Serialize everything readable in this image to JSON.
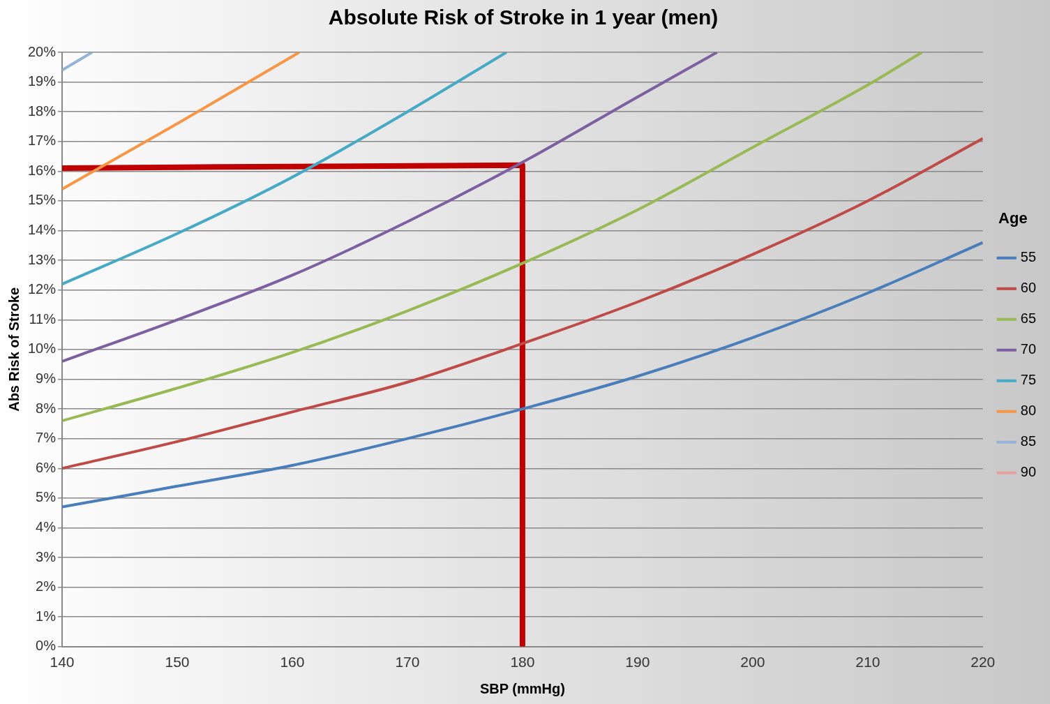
{
  "chart_data": {
    "type": "line",
    "title": "Absolute Risk of Stroke in 1 year (men)",
    "xlabel": "SBP (mmHg)",
    "ylabel": "Abs Risk of Stroke",
    "legend_title": "Age",
    "legend": "right",
    "grid": "y",
    "marker": "none",
    "line_style": "solid",
    "xlim": [
      140,
      220
    ],
    "xticks": [
      140,
      150,
      160,
      170,
      180,
      190,
      200,
      210,
      220
    ],
    "ylim": [
      0,
      20
    ],
    "yticks": [
      {
        "value": 0,
        "label": "0%"
      },
      {
        "value": 1,
        "label": "1%"
      },
      {
        "value": 2,
        "label": "2%"
      },
      {
        "value": 3,
        "label": "3%"
      },
      {
        "value": 4,
        "label": "4%"
      },
      {
        "value": 5,
        "label": "5%"
      },
      {
        "value": 6,
        "label": "6%"
      },
      {
        "value": 7,
        "label": "7%"
      },
      {
        "value": 8,
        "label": "8%"
      },
      {
        "value": 9,
        "label": "9%"
      },
      {
        "value": 10,
        "label": "10%"
      },
      {
        "value": 11,
        "label": "11%"
      },
      {
        "value": 12,
        "label": "12%"
      },
      {
        "value": 13,
        "label": "13%"
      },
      {
        "value": 14,
        "label": "14%"
      },
      {
        "value": 15,
        "label": "15%"
      },
      {
        "value": 16,
        "label": "16%"
      },
      {
        "value": 17,
        "label": "17%"
      },
      {
        "value": 18,
        "label": "18%"
      },
      {
        "value": 19,
        "label": "19%"
      },
      {
        "value": 20,
        "label": "20%"
      }
    ],
    "series": [
      {
        "name": "55",
        "color": "#4a7ebb",
        "x": [
          140,
          150,
          160,
          170,
          180,
          190,
          200,
          210,
          220
        ],
        "values": [
          4.7,
          5.4,
          6.1,
          7.0,
          8.0,
          9.1,
          10.4,
          11.9,
          13.6
        ]
      },
      {
        "name": "60",
        "color": "#be4b48",
        "x": [
          140,
          150,
          160,
          170,
          180,
          190,
          200,
          210,
          220
        ],
        "values": [
          6.0,
          6.9,
          7.9,
          8.9,
          10.2,
          11.6,
          13.2,
          15.0,
          17.1
        ]
      },
      {
        "name": "65",
        "color": "#98b954",
        "x": [
          140,
          150,
          160,
          170,
          180,
          190,
          200,
          210,
          214.7
        ],
        "values": [
          7.6,
          8.7,
          9.9,
          11.3,
          12.9,
          14.7,
          16.8,
          18.9,
          20
        ]
      },
      {
        "name": "70",
        "color": "#7d60a0",
        "x": [
          140,
          150,
          160,
          170,
          180,
          190,
          196.9
        ],
        "values": [
          9.6,
          11.0,
          12.5,
          14.3,
          16.3,
          18.5,
          20
        ]
      },
      {
        "name": "75",
        "color": "#46aac5",
        "x": [
          140,
          150,
          160,
          170,
          178.6
        ],
        "values": [
          12.2,
          13.9,
          15.8,
          18.0,
          20
        ]
      },
      {
        "name": "80",
        "color": "#f79646",
        "x": [
          140,
          150,
          160.6
        ],
        "values": [
          15.4,
          17.6,
          20
        ]
      },
      {
        "name": "85",
        "color": "#95b3d7",
        "x": [
          140,
          142.6
        ],
        "values": [
          19.4,
          20
        ]
      },
      {
        "name": "90",
        "color": "#e6a0a0"
      },
      {
        "color": "#c00000",
        "x": [
          140,
          180,
          180
        ],
        "values": [
          16.1,
          16.2,
          0
        ]
      }
    ]
  }
}
